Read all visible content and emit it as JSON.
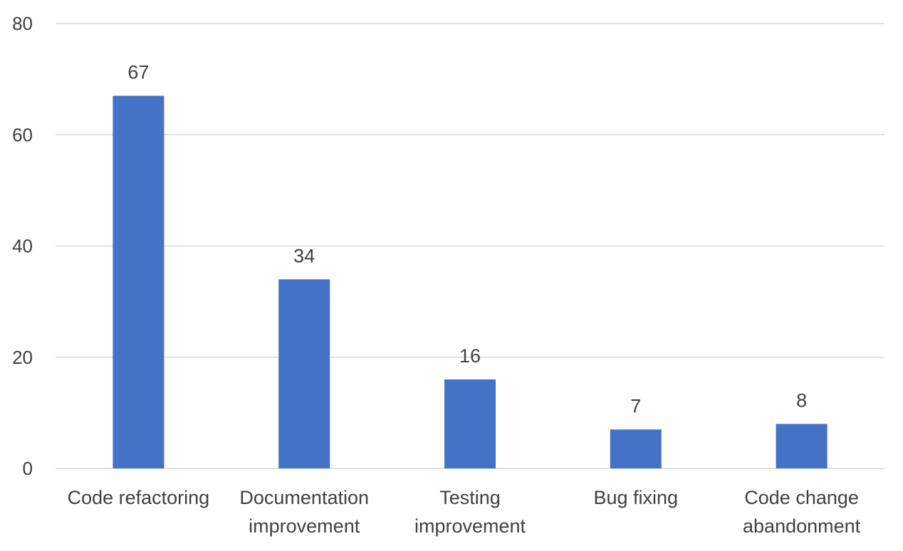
{
  "chart_data": {
    "type": "bar",
    "title": "",
    "xlabel": "",
    "ylabel": "",
    "categories": [
      [
        "Code refactoring"
      ],
      [
        "Documentation",
        "improvement"
      ],
      [
        "Testing",
        "improvement"
      ],
      [
        "Bug fixing"
      ],
      [
        "Code change",
        "abandonment"
      ]
    ],
    "values": [
      67,
      34,
      16,
      7,
      8
    ],
    "ylim": [
      0,
      80
    ],
    "yticks": [
      0,
      20,
      40,
      60,
      80
    ],
    "grid": true,
    "legend": "none",
    "data_labels": true,
    "bar_color": "#4472c4"
  }
}
